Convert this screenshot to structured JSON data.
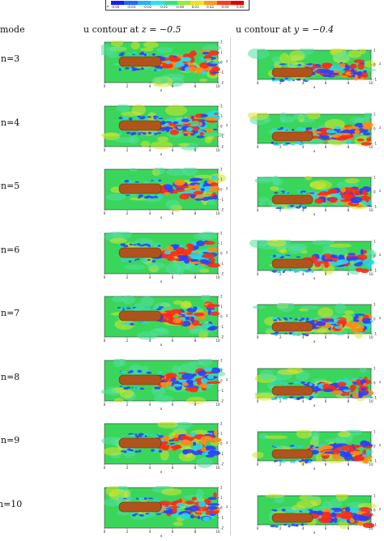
{
  "colorbar": {
    "variable": "u",
    "ticks": [
      "-0.04",
      "-0.03",
      "-0.02",
      "-0.01",
      "-0.00",
      "0.01",
      "0.02",
      "0.03",
      "0.04"
    ],
    "colors": [
      "#1a1aff",
      "#1f6bff",
      "#1fb4ff",
      "#22e6e6",
      "#2ee67a",
      "#93ef2e",
      "#e6e61f",
      "#ff9a1a",
      "#ff3b1a",
      "#e60000"
    ]
  },
  "headers": {
    "mode": "mode",
    "left": "u contour at ",
    "left_eq": "z = −0.5",
    "right": "u contour at ",
    "right_eq": "y = −0.4"
  },
  "modes": [
    "n=3",
    "n=4",
    "n=5",
    "n=6",
    "n=7",
    "n=8",
    "n=9",
    "n=10"
  ],
  "left_plot": {
    "xlabel": "x",
    "ylabel": "z",
    "xticks": [
      "0",
      "2",
      "4",
      "6",
      "8",
      "10"
    ],
    "yticks": [
      "2",
      "1",
      "0",
      "-1",
      "-2"
    ]
  },
  "right_plot": {
    "xlabel": "x",
    "ylabel": "z",
    "xticks": [
      "0",
      "2",
      "4",
      "6",
      "8",
      "10"
    ],
    "yticks": [
      "1",
      "0",
      "-1"
    ]
  },
  "palette": {
    "background": "#3ad65c",
    "body": "#b0531c",
    "body_edge": "#6e3410",
    "red": "#ff2a1a",
    "blue": "#2a40ff",
    "cyan": "#29d7e6",
    "yellow": "#d8e62a",
    "orange": "#ff8a1a"
  }
}
